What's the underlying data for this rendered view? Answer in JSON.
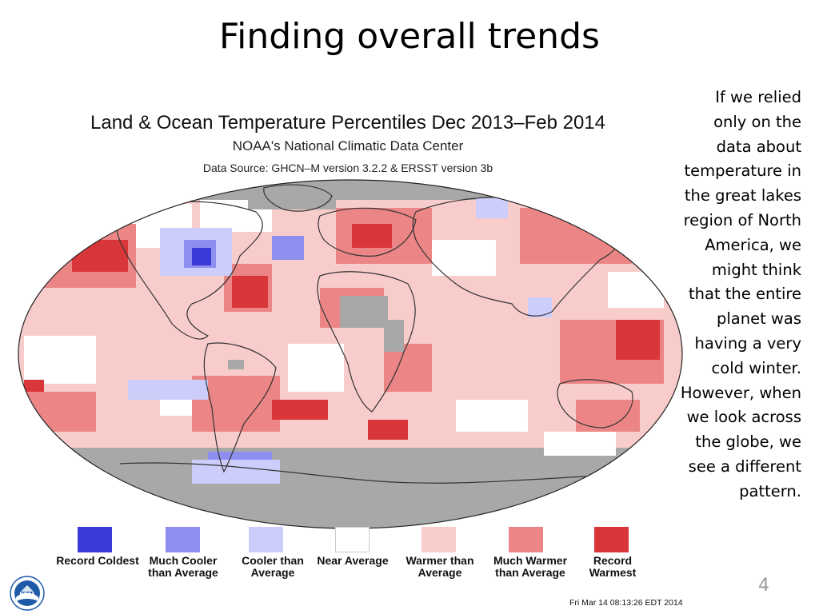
{
  "slide": {
    "title": "Finding overall trends",
    "page_number": "4"
  },
  "map": {
    "title": "Land & Ocean Temperature Percentiles Dec 2013–Feb 2014",
    "subtitle": "NOAA's National Climatic Data Center",
    "source": "Data Source: GHCN–M version 3.2.2 & ERSST version 3b",
    "timestamp": "Fri Mar 14 08:13:26 EDT 2014",
    "logo_text": "NOAA"
  },
  "legend": [
    {
      "label": "Record Coldest",
      "color": "#3a3ad8"
    },
    {
      "label": "Much Cooler than Average",
      "color": "#8e8ef0"
    },
    {
      "label": "Cooler than Average",
      "color": "#cdcdfc"
    },
    {
      "label": "Near Average",
      "color": "#ffffff"
    },
    {
      "label": "Warmer than Average",
      "color": "#f9cccc"
    },
    {
      "label": "Much Warmer than Average",
      "color": "#ec8686"
    },
    {
      "label": "Record Warmest",
      "color": "#d9363a"
    }
  ],
  "colors": {
    "no_data": "#a8a8a8",
    "warmer": "#f9cccc",
    "much_warmer": "#ec8686",
    "record_warmest": "#d9363a",
    "cooler": "#cdcdfc",
    "much_cooler": "#8e8ef0",
    "record_coldest": "#3a3ad8",
    "near": "#ffffff"
  },
  "side_text": "If we relied only on the data about temperature in the great lakes region of North America, we might think that the entire planet was having a very cold winter. However, when we look across the globe, we see a different pattern."
}
